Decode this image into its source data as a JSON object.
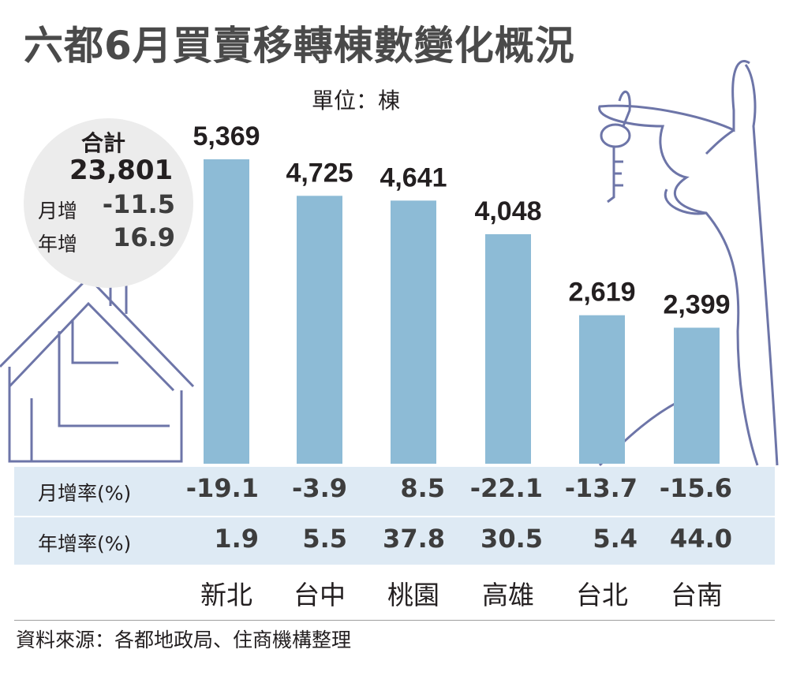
{
  "title": "六都6月買賣移轉棟數變化概況",
  "unit": "單位：棟",
  "summary": {
    "label": "合計",
    "total": "23,801",
    "monthly_label": "月增",
    "monthly_value": "-11.5",
    "yearly_label": "年增",
    "yearly_value": "16.9"
  },
  "colors": {
    "bar": "#8dbbd6",
    "table_bg": "#deeaf4",
    "circle": "#ececec",
    "outline": "#6d75a8"
  },
  "chart_data": {
    "type": "bar",
    "categories": [
      "新北",
      "台中",
      "桃園",
      "高雄",
      "台北",
      "台南"
    ],
    "values": [
      5369,
      4725,
      4641,
      4048,
      2619,
      2399
    ],
    "value_labels": [
      "5,369",
      "4,725",
      "4,641",
      "4,048",
      "2,619",
      "2,399"
    ],
    "title": "六都6月買賣移轉棟數變化概況",
    "ylabel": "",
    "ylim": [
      0,
      5369
    ]
  },
  "table": {
    "rows": [
      {
        "label": "月增率(%)",
        "values": [
          "-19.1",
          "-3.9",
          "8.5",
          "-22.1",
          "-13.7",
          "-15.6"
        ]
      },
      {
        "label": "年增率(%)",
        "values": [
          "1.9",
          "5.5",
          "37.8",
          "30.5",
          "5.4",
          "44.0"
        ]
      }
    ]
  },
  "source": "資料來源：各都地政局、住商機構整理",
  "icons": [
    "house-outline-icon",
    "hand-with-key-icon"
  ]
}
